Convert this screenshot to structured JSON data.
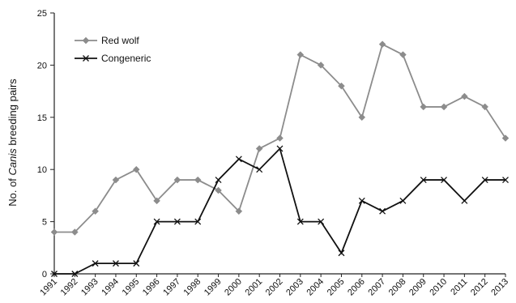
{
  "chart_data": {
    "type": "line",
    "title": "",
    "xlabel": "",
    "ylabel_prefix": "No. of ",
    "ylabel_italic": "Canis",
    "ylabel_suffix": " breeding pairs",
    "ylim": [
      0,
      25
    ],
    "yticks": [
      0,
      5,
      10,
      15,
      20,
      25
    ],
    "x": [
      "1991",
      "1992",
      "1993",
      "1994",
      "1995",
      "1996",
      "1997",
      "1998",
      "1999",
      "2000",
      "2001",
      "2002",
      "2003",
      "2004",
      "2005",
      "2006",
      "2007",
      "2008",
      "2009",
      "2010",
      "2011",
      "2012",
      "2013"
    ],
    "grid": false,
    "legend_position": "top-left",
    "series": [
      {
        "name": "Red wolf",
        "color": "#8c8c8c",
        "marker": "diamond",
        "values": [
          4,
          4,
          6,
          9,
          10,
          7,
          9,
          9,
          8,
          6,
          12,
          13,
          21,
          20,
          18,
          15,
          22,
          21,
          16,
          16,
          17,
          16,
          13
        ]
      },
      {
        "name": "Congeneric",
        "color": "#111111",
        "marker": "x",
        "values": [
          0,
          0,
          1,
          1,
          1,
          5,
          5,
          5,
          9,
          11,
          10,
          12,
          5,
          5,
          2,
          7,
          6,
          7,
          9,
          9,
          7,
          9,
          9
        ]
      }
    ]
  }
}
